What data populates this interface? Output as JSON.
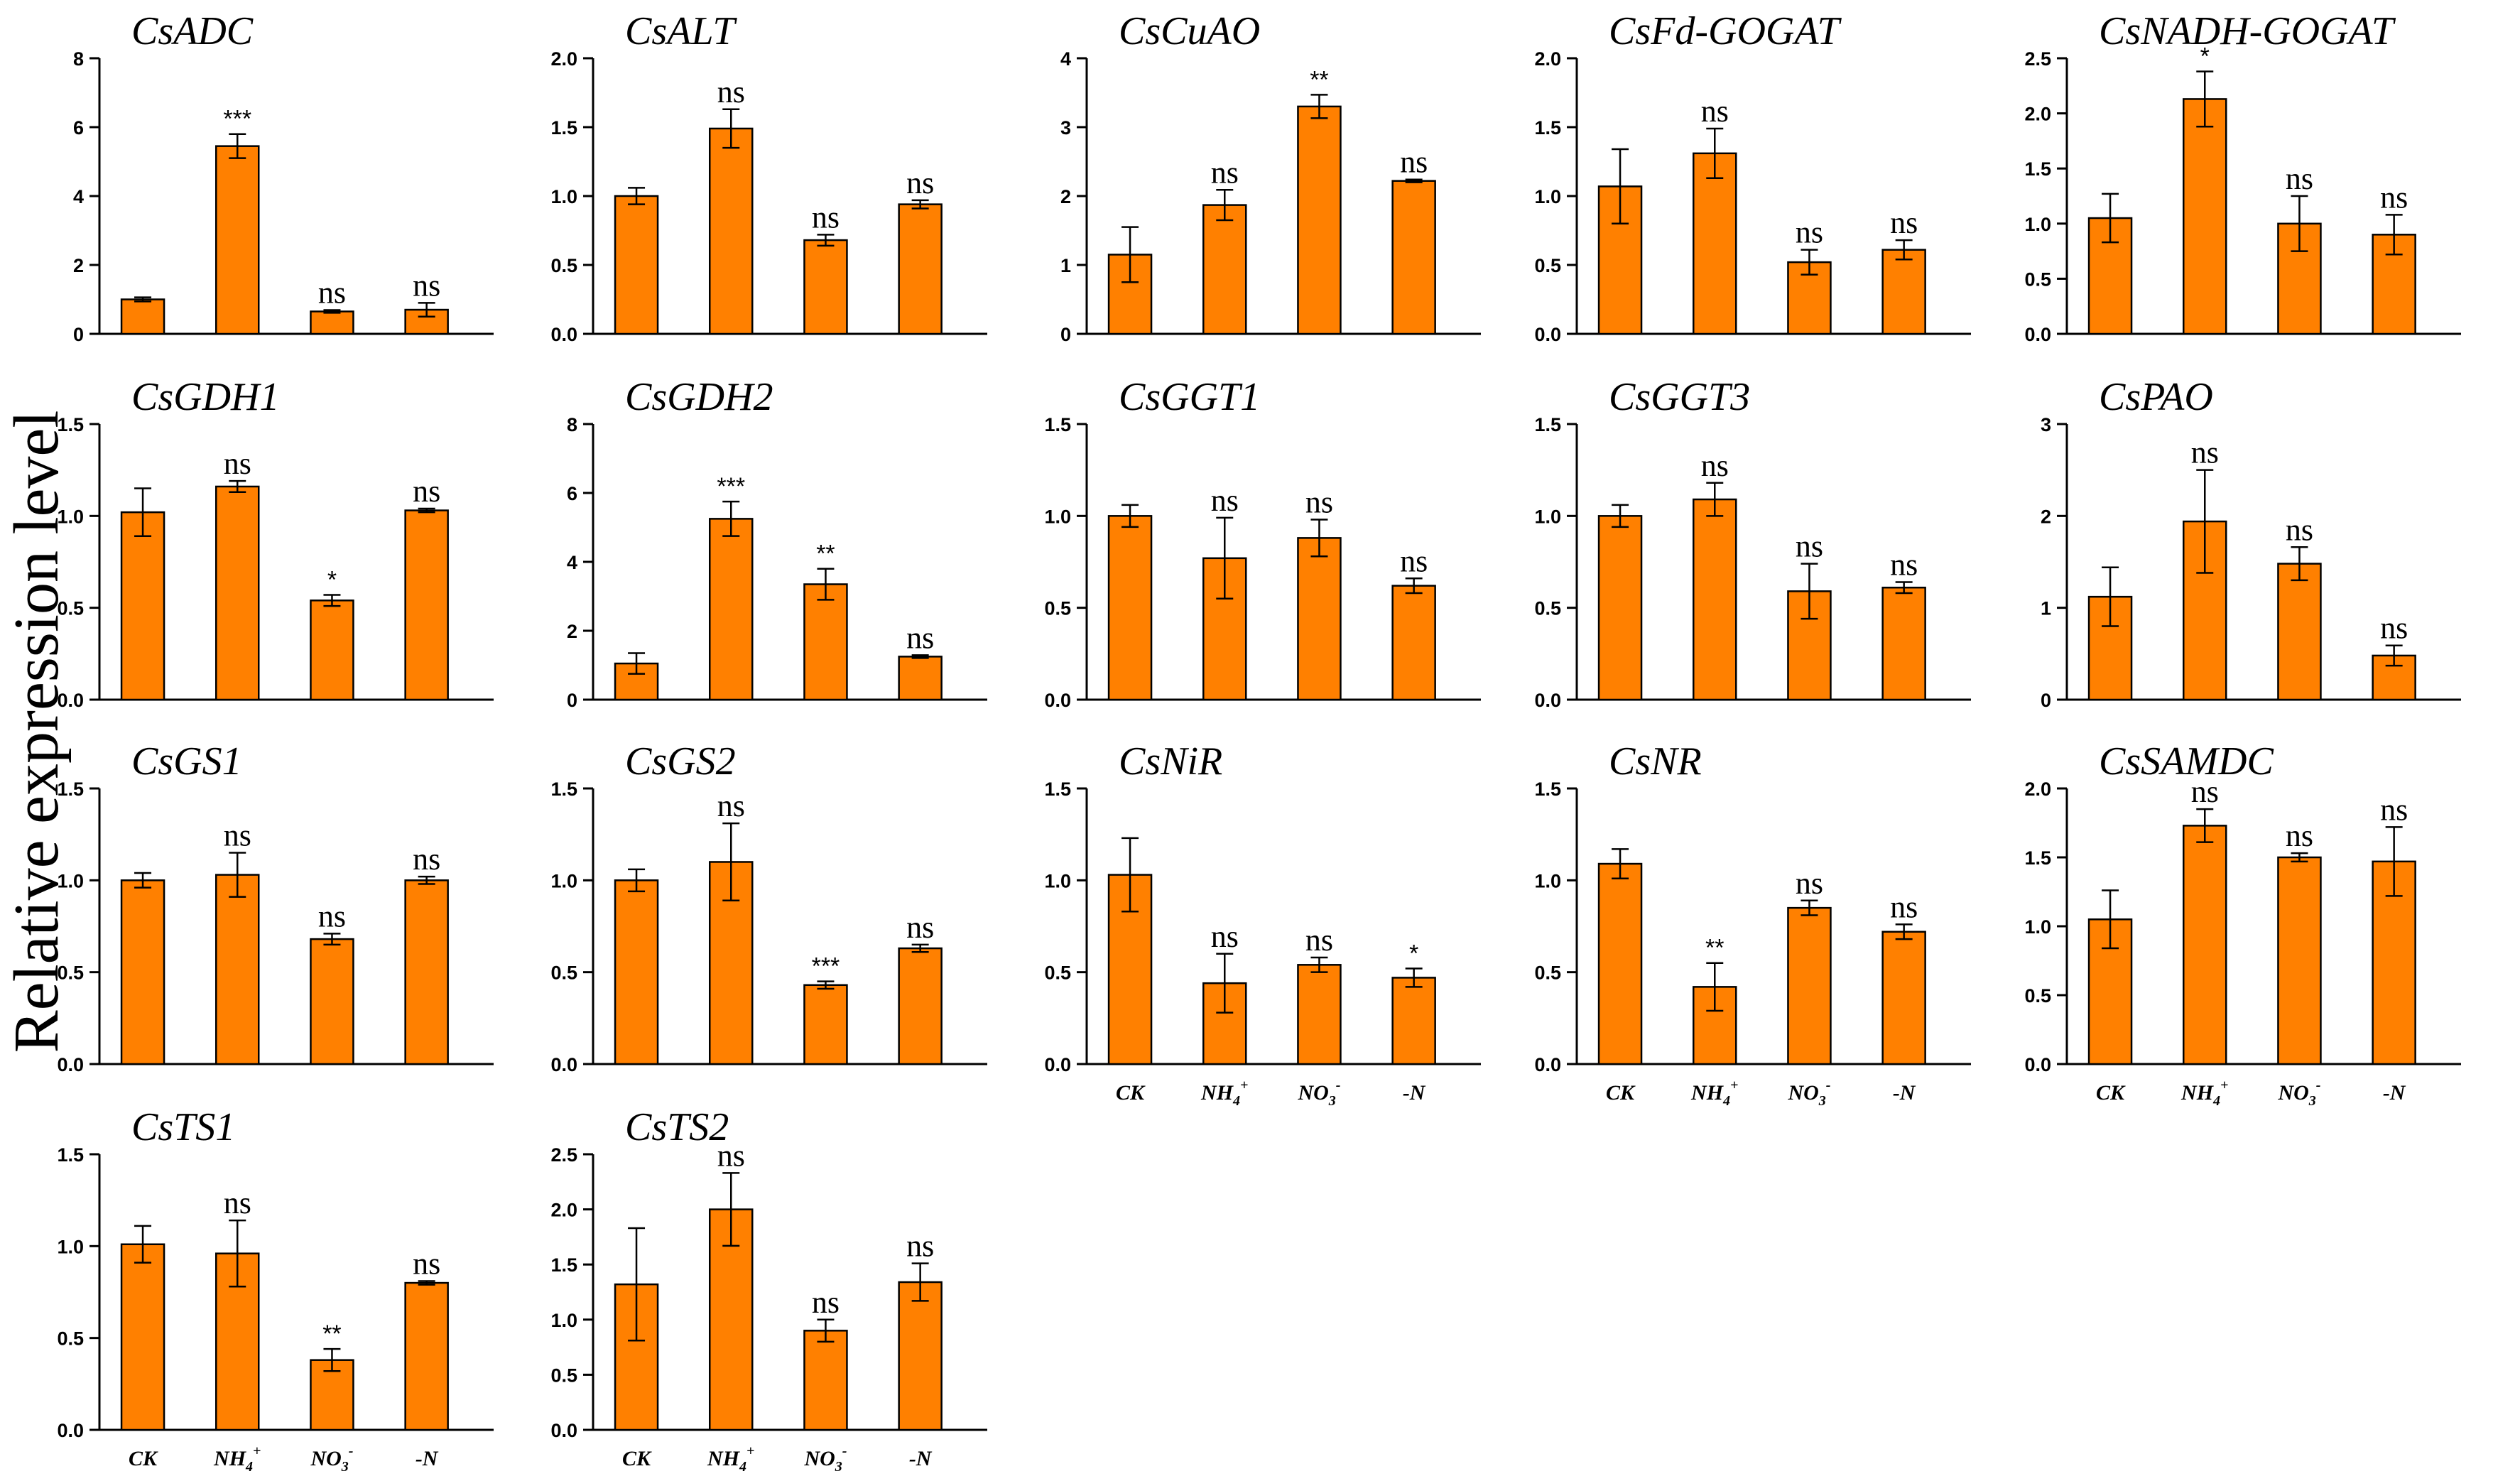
{
  "figure": {
    "ylabel": "Relative expression level",
    "bar_color": "#FF8000",
    "categories": [
      {
        "main": "CK",
        "sup": ""
      },
      {
        "main": "NH",
        "sub": "4",
        "sup": "+"
      },
      {
        "main": "NO",
        "sub": "3",
        "sup": "-"
      },
      {
        "main": "-N",
        "sup": ""
      }
    ]
  },
  "chart_data": [
    {
      "type": "bar",
      "title": "CsADC",
      "ylim": [
        0,
        8
      ],
      "yticks": [
        "0",
        "2",
        "4",
        "6",
        "8"
      ],
      "values": [
        1.0,
        5.45,
        0.65,
        0.7
      ],
      "errors": [
        0.06,
        0.35,
        0.04,
        0.2
      ],
      "significance": [
        "",
        "***",
        "ns",
        "ns"
      ]
    },
    {
      "type": "bar",
      "title": "CsALT",
      "ylim": [
        0,
        2
      ],
      "yticks": [
        "0.0",
        "0.5",
        "1.0",
        "1.5",
        "2.0"
      ],
      "values": [
        1.0,
        1.49,
        0.68,
        0.94
      ],
      "errors": [
        0.06,
        0.14,
        0.04,
        0.03
      ],
      "significance": [
        "",
        "ns",
        "ns",
        "ns"
      ]
    },
    {
      "type": "bar",
      "title": "CsCuAO",
      "ylim": [
        0,
        4
      ],
      "yticks": [
        "0",
        "1",
        "2",
        "3",
        "4"
      ],
      "values": [
        1.15,
        1.87,
        3.3,
        2.22
      ],
      "errors": [
        0.4,
        0.22,
        0.17,
        0.02
      ],
      "significance": [
        "",
        "ns",
        "**",
        "ns"
      ]
    },
    {
      "type": "bar",
      "title": "CsFd-GOGAT",
      "ylim": [
        0,
        2
      ],
      "yticks": [
        "0.0",
        "0.5",
        "1.0",
        "1.5",
        "2.0"
      ],
      "values": [
        1.07,
        1.31,
        0.52,
        0.61
      ],
      "errors": [
        0.27,
        0.18,
        0.09,
        0.07
      ],
      "significance": [
        "",
        "ns",
        "ns",
        "ns"
      ]
    },
    {
      "type": "bar",
      "title": "CsNADH-GOGAT",
      "ylim": [
        0,
        2.5
      ],
      "yticks": [
        "0.0",
        "0.5",
        "1.0",
        "1.5",
        "2.0",
        "2.5"
      ],
      "values": [
        1.05,
        2.13,
        1.0,
        0.9
      ],
      "errors": [
        0.22,
        0.25,
        0.25,
        0.18
      ],
      "significance": [
        "",
        "*",
        "ns",
        "ns"
      ]
    },
    {
      "type": "bar",
      "title": "CsGDH1",
      "ylim": [
        0,
        1.5
      ],
      "yticks": [
        "0.0",
        "0.5",
        "1.0",
        "1.5"
      ],
      "values": [
        1.02,
        1.16,
        0.54,
        1.03
      ],
      "errors": [
        0.13,
        0.03,
        0.03,
        0.01
      ],
      "significance": [
        "",
        "ns",
        "*",
        "ns"
      ]
    },
    {
      "type": "bar",
      "title": "CsGDH2",
      "ylim": [
        0,
        8
      ],
      "yticks": [
        "0",
        "2",
        "4",
        "6",
        "8"
      ],
      "values": [
        1.05,
        5.25,
        3.35,
        1.25
      ],
      "errors": [
        0.3,
        0.5,
        0.45,
        0.04
      ],
      "significance": [
        "",
        "***",
        "**",
        "ns"
      ]
    },
    {
      "type": "bar",
      "title": "CsGGT1",
      "ylim": [
        0,
        1.5
      ],
      "yticks": [
        "0.0",
        "0.5",
        "1.0",
        "1.5"
      ],
      "values": [
        1.0,
        0.77,
        0.88,
        0.62
      ],
      "errors": [
        0.06,
        0.22,
        0.1,
        0.04
      ],
      "significance": [
        "",
        "ns",
        "ns",
        "ns"
      ]
    },
    {
      "type": "bar",
      "title": "CsGGT3",
      "ylim": [
        0,
        1.5
      ],
      "yticks": [
        "0.0",
        "0.5",
        "1.0",
        "1.5"
      ],
      "values": [
        1.0,
        1.09,
        0.59,
        0.61
      ],
      "errors": [
        0.06,
        0.09,
        0.15,
        0.03
      ],
      "significance": [
        "",
        "ns",
        "ns",
        "ns"
      ]
    },
    {
      "type": "bar",
      "title": "CsPAO",
      "ylim": [
        0,
        3
      ],
      "yticks": [
        "0",
        "1",
        "2",
        "3"
      ],
      "values": [
        1.12,
        1.94,
        1.48,
        0.48
      ],
      "errors": [
        0.32,
        0.56,
        0.18,
        0.11
      ],
      "significance": [
        "",
        "ns",
        "ns",
        "ns"
      ]
    },
    {
      "type": "bar",
      "title": "CsGS1",
      "ylim": [
        0,
        1.5
      ],
      "yticks": [
        "0.0",
        "0.5",
        "1.0",
        "1.5"
      ],
      "values": [
        1.0,
        1.03,
        0.68,
        1.0
      ],
      "errors": [
        0.04,
        0.12,
        0.03,
        0.02
      ],
      "significance": [
        "",
        "ns",
        "ns",
        "ns"
      ]
    },
    {
      "type": "bar",
      "title": "CsGS2",
      "ylim": [
        0,
        1.5
      ],
      "yticks": [
        "0.0",
        "0.5",
        "1.0",
        "1.5"
      ],
      "values": [
        1.0,
        1.1,
        0.43,
        0.63
      ],
      "errors": [
        0.06,
        0.21,
        0.02,
        0.02
      ],
      "significance": [
        "",
        "ns",
        "***",
        "ns"
      ]
    },
    {
      "type": "bar",
      "title": "CsNiR",
      "ylim": [
        0,
        1.5
      ],
      "yticks": [
        "0.0",
        "0.5",
        "1.0",
        "1.5"
      ],
      "values": [
        1.03,
        0.44,
        0.54,
        0.47
      ],
      "errors": [
        0.2,
        0.16,
        0.04,
        0.05
      ],
      "significance": [
        "",
        "ns",
        "ns",
        "*"
      ]
    },
    {
      "type": "bar",
      "title": "CsNR",
      "ylim": [
        0,
        1.5
      ],
      "yticks": [
        "0.0",
        "0.5",
        "1.0",
        "1.5"
      ],
      "values": [
        1.09,
        0.42,
        0.85,
        0.72
      ],
      "errors": [
        0.08,
        0.13,
        0.04,
        0.04
      ],
      "significance": [
        "",
        "**",
        "ns",
        "ns"
      ]
    },
    {
      "type": "bar",
      "title": "CsSAMDC",
      "ylim": [
        0,
        2
      ],
      "yticks": [
        "0.0",
        "0.5",
        "1.0",
        "1.5",
        "2.0"
      ],
      "values": [
        1.05,
        1.73,
        1.5,
        1.47
      ],
      "errors": [
        0.21,
        0.12,
        0.03,
        0.25
      ],
      "significance": [
        "",
        "ns",
        "ns",
        "ns"
      ]
    },
    {
      "type": "bar",
      "title": "CsTS1",
      "ylim": [
        0,
        1.5
      ],
      "yticks": [
        "0.0",
        "0.5",
        "1.0",
        "1.5"
      ],
      "values": [
        1.01,
        0.96,
        0.38,
        0.8
      ],
      "errors": [
        0.1,
        0.18,
        0.06,
        0.01
      ],
      "significance": [
        "",
        "ns",
        "**",
        "ns"
      ]
    },
    {
      "type": "bar",
      "title": "CsTS2",
      "ylim": [
        0,
        2.5
      ],
      "yticks": [
        "0.0",
        "0.5",
        "1.0",
        "1.5",
        "2.0",
        "2.5"
      ],
      "values": [
        1.32,
        2.0,
        0.9,
        1.34
      ],
      "errors": [
        0.51,
        0.33,
        0.1,
        0.17
      ],
      "significance": [
        "",
        "ns",
        "ns",
        "ns"
      ]
    }
  ]
}
